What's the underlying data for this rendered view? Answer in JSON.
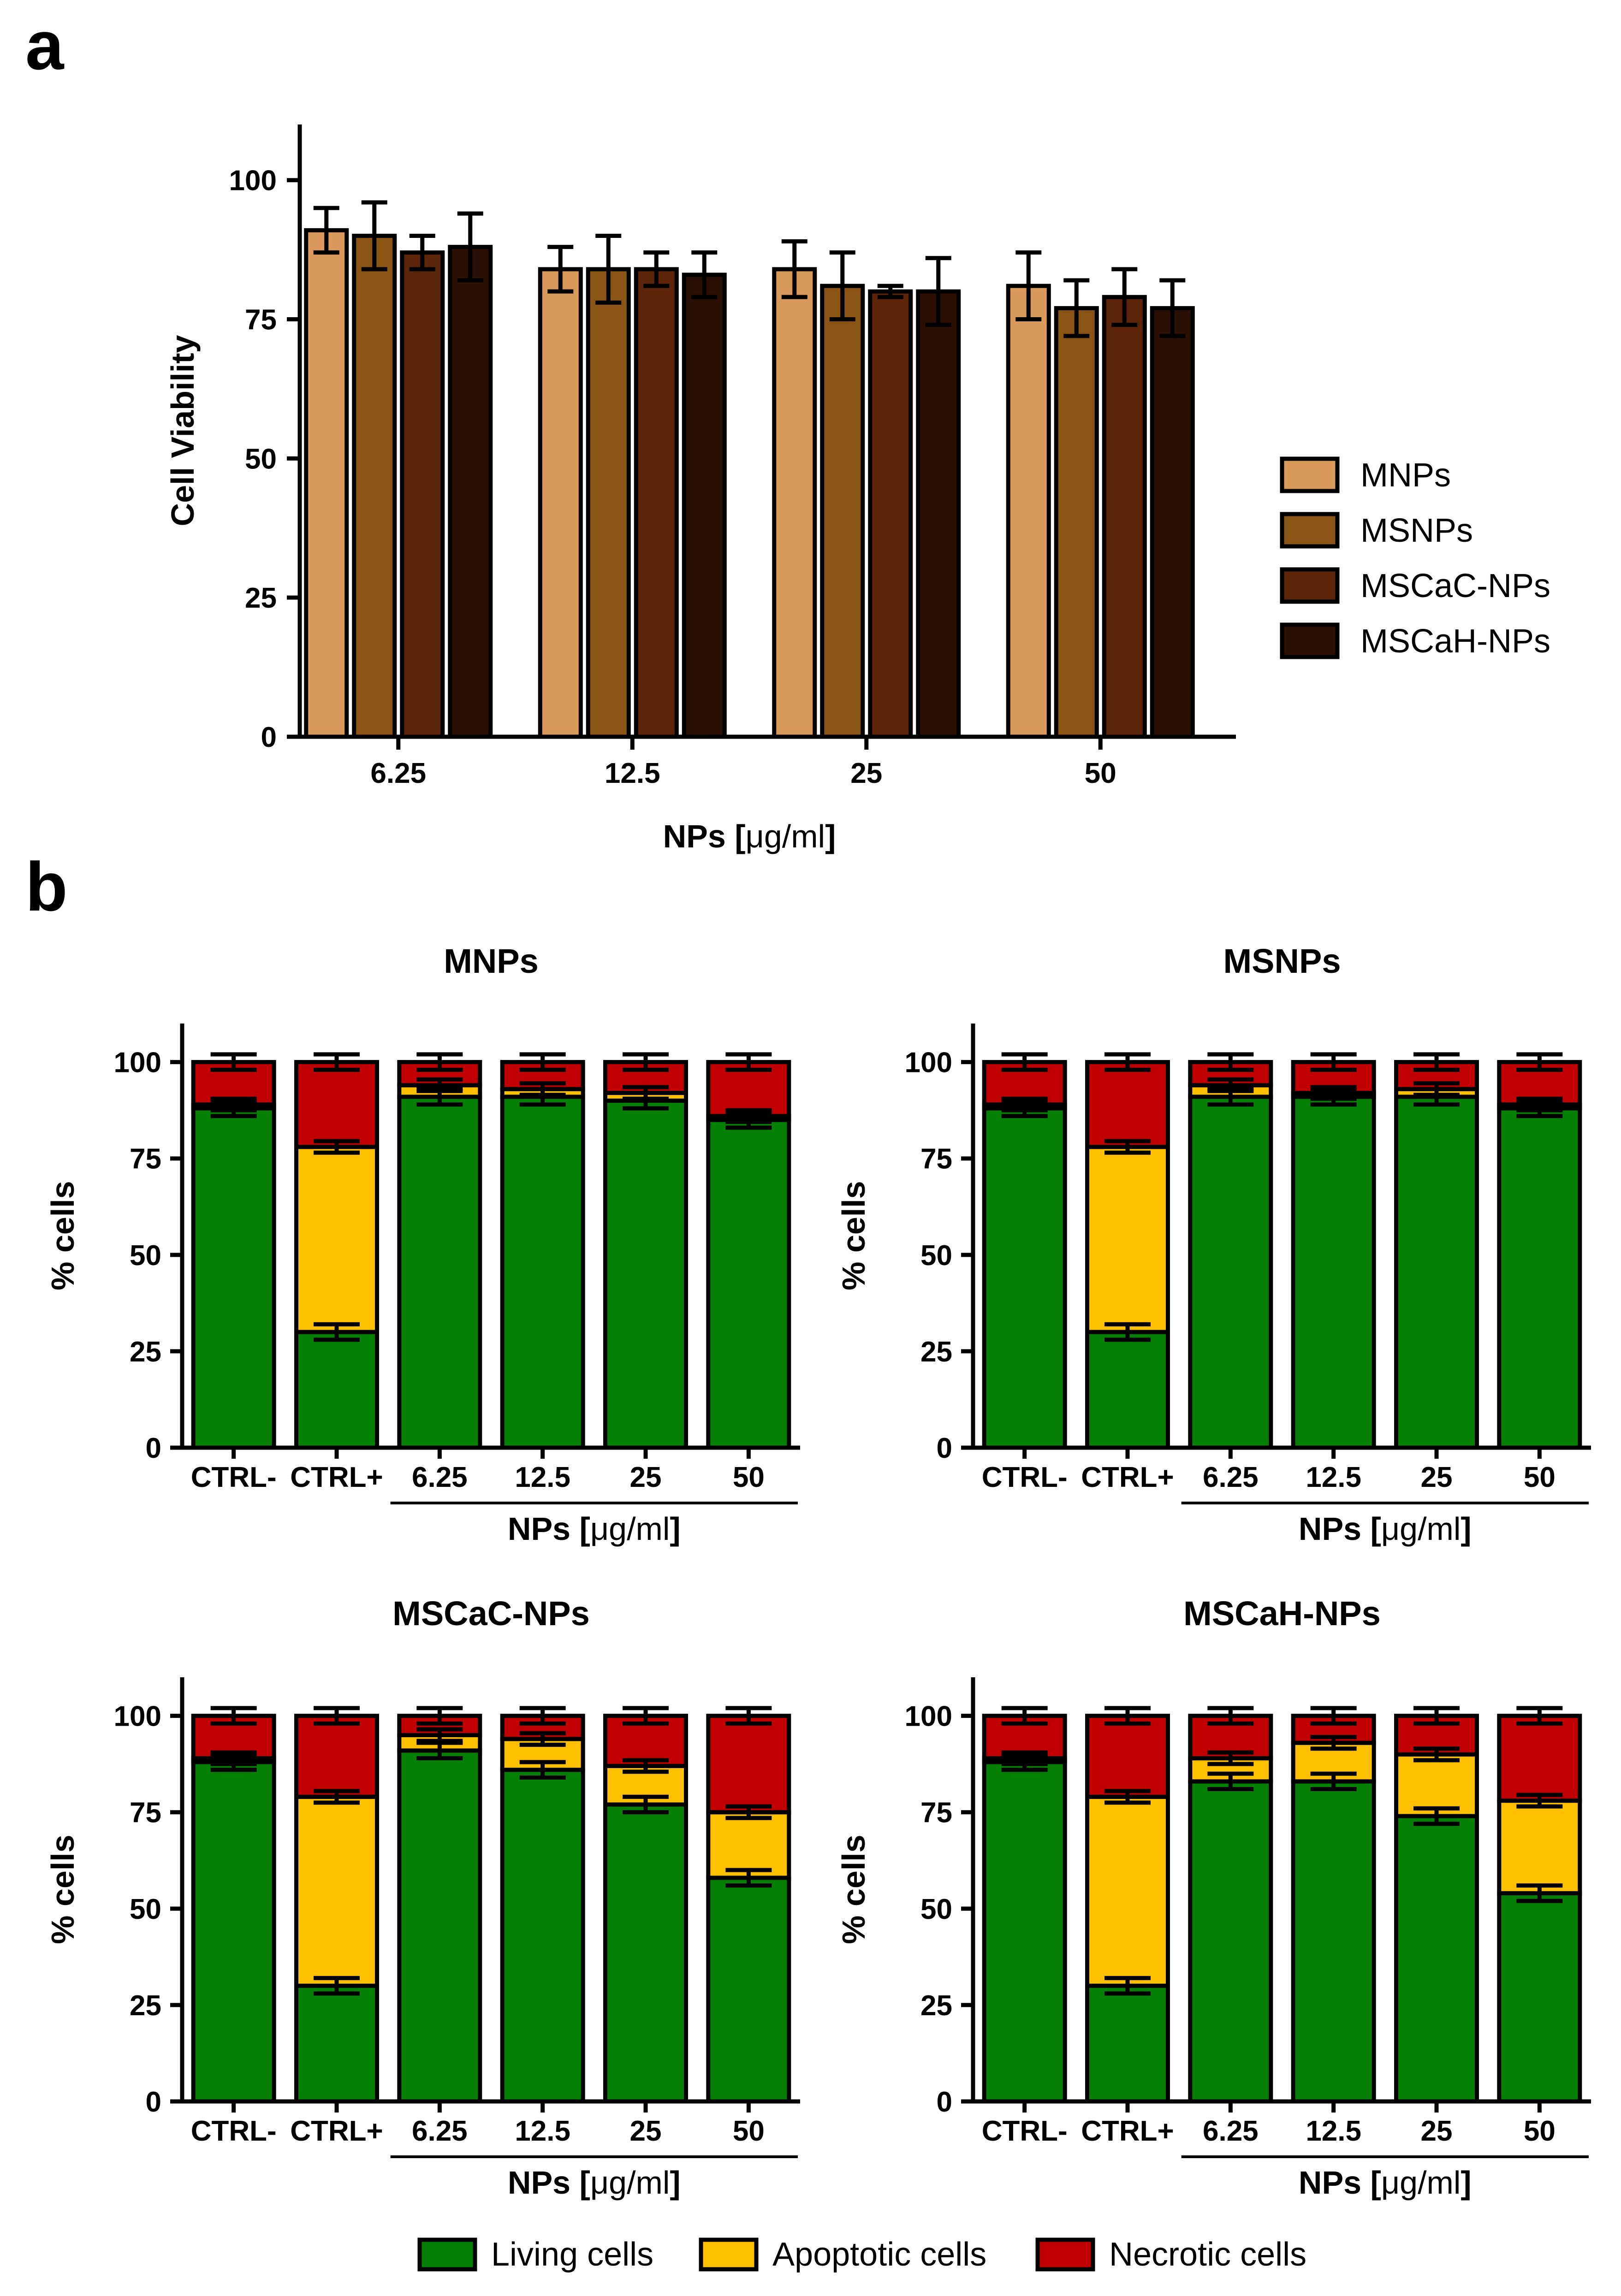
{
  "panel_labels": {
    "a": "a",
    "b": "b"
  },
  "chart_data": [
    {
      "type": "bar",
      "panel": "a",
      "title": "",
      "xlabel_main": "NPs [",
      "xlabel_unit": "μg/ml",
      "xlabel_end": "]",
      "xlabel": "NPs [μg/ml]",
      "ylabel": "Cell Viability",
      "ylim": [
        0,
        110
      ],
      "yticks": [
        0,
        25,
        50,
        75,
        100
      ],
      "categories": [
        "6.25",
        "12.5",
        "25",
        "50"
      ],
      "series": [
        {
          "name": "MNPs",
          "color": "#d9995a",
          "values": [
            91,
            84,
            84,
            81
          ],
          "errors": [
            4,
            4,
            5,
            6
          ]
        },
        {
          "name": "MSNPs",
          "color": "#8a5514",
          "values": [
            90,
            84,
            81,
            77
          ],
          "errors": [
            6,
            6,
            6,
            5
          ]
        },
        {
          "name": "MSCaC-NPs",
          "color": "#5c2408",
          "values": [
            87,
            84,
            80,
            79
          ],
          "errors": [
            3,
            3,
            1,
            5
          ]
        },
        {
          "name": "MSCaH-NPs",
          "color": "#2a1004",
          "values": [
            88,
            83,
            80,
            77
          ],
          "errors": [
            6,
            4,
            6,
            5
          ]
        }
      ]
    },
    {
      "type": "stacked-bar",
      "panel": "b",
      "title": "MNPs",
      "ylabel": "% cells",
      "xlabel_main": "NPs [",
      "xlabel_unit": "μg/ml",
      "xlabel_end": "]",
      "xlabel": "NPs [μg/ml]",
      "ylim": [
        0,
        110
      ],
      "yticks": [
        0,
        25,
        50,
        75,
        100
      ],
      "categories": [
        "CTRL-",
        "CTRL+",
        "6.25",
        "12.5",
        "25",
        "50"
      ],
      "series": [
        {
          "name": "Living cells",
          "values": [
            88,
            30,
            91,
            91,
            90,
            85
          ]
        },
        {
          "name": "Apoptotic cells",
          "values": [
            1,
            48,
            3,
            2,
            2,
            1
          ]
        },
        {
          "name": "Necrotic cells",
          "values": [
            11,
            22,
            6,
            7,
            8,
            14
          ]
        }
      ]
    },
    {
      "type": "stacked-bar",
      "panel": "b",
      "title": "MSNPs",
      "ylabel": "% cells",
      "xlabel_main": "NPs [",
      "xlabel_unit": "μg/ml",
      "xlabel_end": "]",
      "xlabel": "NPs [μg/ml]",
      "ylim": [
        0,
        110
      ],
      "yticks": [
        0,
        25,
        50,
        75,
        100
      ],
      "categories": [
        "CTRL-",
        "CTRL+",
        "6.25",
        "12.5",
        "25",
        "50"
      ],
      "series": [
        {
          "name": "Living cells",
          "values": [
            88,
            30,
            91,
            91,
            91,
            88
          ]
        },
        {
          "name": "Apoptotic cells",
          "values": [
            1,
            48,
            3,
            1,
            2,
            1
          ]
        },
        {
          "name": "Necrotic cells",
          "values": [
            11,
            22,
            6,
            8,
            7,
            11
          ]
        }
      ]
    },
    {
      "type": "stacked-bar",
      "panel": "b",
      "title": "MSCaC-NPs",
      "ylabel": "% cells",
      "xlabel_main": "NPs [",
      "xlabel_unit": "μg/ml",
      "xlabel_end": "]",
      "xlabel": "NPs [μg/ml]",
      "ylim": [
        0,
        110
      ],
      "yticks": [
        0,
        25,
        50,
        75,
        100
      ],
      "categories": [
        "CTRL-",
        "CTRL+",
        "6.25",
        "12.5",
        "25",
        "50"
      ],
      "series": [
        {
          "name": "Living cells",
          "values": [
            88,
            30,
            91,
            86,
            77,
            58
          ]
        },
        {
          "name": "Apoptotic cells",
          "values": [
            1,
            49,
            4,
            8,
            10,
            17
          ]
        },
        {
          "name": "Necrotic cells",
          "values": [
            11,
            21,
            5,
            6,
            13,
            25
          ]
        }
      ]
    },
    {
      "type": "stacked-bar",
      "panel": "b",
      "title": "MSCaH-NPs",
      "ylabel": "% cells",
      "xlabel_main": "NPs [",
      "xlabel_unit": "μg/ml",
      "xlabel_end": "]",
      "xlabel": "NPs [μg/ml]",
      "ylim": [
        0,
        110
      ],
      "yticks": [
        0,
        25,
        50,
        75,
        100
      ],
      "categories": [
        "CTRL-",
        "CTRL+",
        "6.25",
        "12.5",
        "25",
        "50"
      ],
      "series": [
        {
          "name": "Living cells",
          "values": [
            88,
            30,
            83,
            83,
            74,
            54
          ]
        },
        {
          "name": "Apoptotic cells",
          "values": [
            1,
            49,
            6,
            10,
            16,
            24
          ]
        },
        {
          "name": "Necrotic cells",
          "values": [
            11,
            21,
            11,
            7,
            10,
            22
          ]
        }
      ]
    }
  ],
  "legend_b": [
    {
      "name": "Living cells",
      "color": "#058005"
    },
    {
      "name": "Apoptotic cells",
      "color": "#ffc000"
    },
    {
      "name": "Necrotic cells",
      "color": "#c00000"
    }
  ]
}
